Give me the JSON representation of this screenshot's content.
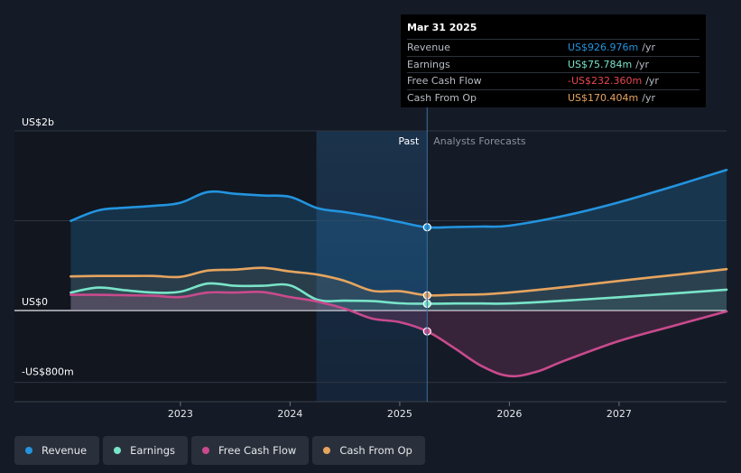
{
  "chart_data": {
    "type": "area",
    "y_axis": {
      "min": -800,
      "max": 2000,
      "unit": "US$m",
      "labels": [
        {
          "value": 2000,
          "text": "US$2b"
        },
        {
          "value": 0,
          "text": "US$0"
        },
        {
          "value": -800,
          "text": "-US$800m"
        }
      ]
    },
    "x_axis": {
      "min": 2021.75,
      "max": 2027.98,
      "ticks": [
        {
          "value": 2023.0,
          "text": "2023"
        },
        {
          "value": 2024.0,
          "text": "2024"
        },
        {
          "value": 2025.0,
          "text": "2025"
        },
        {
          "value": 2026.0,
          "text": "2026"
        },
        {
          "value": 2027.0,
          "text": "2027"
        }
      ]
    },
    "divider": {
      "x": 2025.25,
      "past_label": "Past",
      "forecast_label": "Analysts Forecasts"
    },
    "past_shade_start": 2024.24,
    "series": [
      {
        "name": "Revenue",
        "color": "#2394df",
        "points": [
          [
            2022.0,
            998
          ],
          [
            2022.25,
            1115
          ],
          [
            2022.5,
            1145
          ],
          [
            2022.75,
            1165
          ],
          [
            2023.0,
            1200
          ],
          [
            2023.25,
            1320
          ],
          [
            2023.5,
            1300
          ],
          [
            2023.75,
            1280
          ],
          [
            2024.0,
            1265
          ],
          [
            2024.25,
            1140
          ],
          [
            2024.5,
            1095
          ],
          [
            2024.75,
            1045
          ],
          [
            2025.0,
            985
          ],
          [
            2025.25,
            927
          ],
          [
            2025.5,
            930
          ],
          [
            2025.75,
            935
          ],
          [
            2026.0,
            945
          ],
          [
            2026.5,
            1055
          ],
          [
            2027.0,
            1205
          ],
          [
            2027.5,
            1385
          ],
          [
            2027.98,
            1565
          ]
        ]
      },
      {
        "name": "Earnings",
        "color": "#79e4c8",
        "points": [
          [
            2022.0,
            200
          ],
          [
            2022.25,
            255
          ],
          [
            2022.5,
            225
          ],
          [
            2022.75,
            200
          ],
          [
            2023.0,
            210
          ],
          [
            2023.25,
            300
          ],
          [
            2023.5,
            275
          ],
          [
            2023.75,
            275
          ],
          [
            2024.0,
            280
          ],
          [
            2024.25,
            120
          ],
          [
            2024.5,
            110
          ],
          [
            2024.75,
            105
          ],
          [
            2025.0,
            80
          ],
          [
            2025.25,
            76
          ],
          [
            2025.5,
            78
          ],
          [
            2025.75,
            78
          ],
          [
            2026.0,
            78
          ],
          [
            2026.5,
            110
          ],
          [
            2027.0,
            148
          ],
          [
            2027.5,
            190
          ],
          [
            2027.98,
            232
          ]
        ]
      },
      {
        "name": "Free Cash Flow",
        "color": "#c94a8d",
        "points": [
          [
            2022.0,
            175
          ],
          [
            2022.25,
            175
          ],
          [
            2022.5,
            170
          ],
          [
            2022.75,
            165
          ],
          [
            2023.0,
            150
          ],
          [
            2023.25,
            200
          ],
          [
            2023.5,
            200
          ],
          [
            2023.75,
            205
          ],
          [
            2024.0,
            150
          ],
          [
            2024.25,
            100
          ],
          [
            2024.5,
            20
          ],
          [
            2024.75,
            -90
          ],
          [
            2025.0,
            -130
          ],
          [
            2025.25,
            -232
          ],
          [
            2025.5,
            -420
          ],
          [
            2025.75,
            -620
          ],
          [
            2026.0,
            -730
          ],
          [
            2026.25,
            -680
          ],
          [
            2026.5,
            -560
          ],
          [
            2027.0,
            -340
          ],
          [
            2027.5,
            -170
          ],
          [
            2027.98,
            -10
          ]
        ]
      },
      {
        "name": "Cash From Op",
        "color": "#e6a45f",
        "points": [
          [
            2022.0,
            380
          ],
          [
            2022.25,
            385
          ],
          [
            2022.5,
            385
          ],
          [
            2022.75,
            385
          ],
          [
            2023.0,
            375
          ],
          [
            2023.25,
            445
          ],
          [
            2023.5,
            455
          ],
          [
            2023.75,
            475
          ],
          [
            2024.0,
            435
          ],
          [
            2024.25,
            400
          ],
          [
            2024.5,
            330
          ],
          [
            2024.75,
            220
          ],
          [
            2025.0,
            215
          ],
          [
            2025.25,
            170
          ],
          [
            2025.5,
            175
          ],
          [
            2025.75,
            180
          ],
          [
            2026.0,
            200
          ],
          [
            2026.5,
            260
          ],
          [
            2027.0,
            330
          ],
          [
            2027.5,
            395
          ],
          [
            2027.98,
            460
          ]
        ]
      }
    ]
  },
  "tooltip": {
    "date": "Mar 31 2025",
    "unit": "/yr",
    "rows": [
      {
        "label": "Revenue",
        "value": "US$926.976m",
        "color": "#2394df"
      },
      {
        "label": "Earnings",
        "value": "US$75.784m",
        "color": "#79e4c8"
      },
      {
        "label": "Free Cash Flow",
        "value": "-US$232.360m",
        "color": "#e8474f"
      },
      {
        "label": "Cash From Op",
        "value": "US$170.404m",
        "color": "#e6a45f"
      }
    ]
  },
  "legend": [
    {
      "label": "Revenue",
      "color": "#2394df"
    },
    {
      "label": "Earnings",
      "color": "#79e4c8"
    },
    {
      "label": "Free Cash Flow",
      "color": "#c94a8d"
    },
    {
      "label": "Cash From Op",
      "color": "#e6a45f"
    }
  ]
}
